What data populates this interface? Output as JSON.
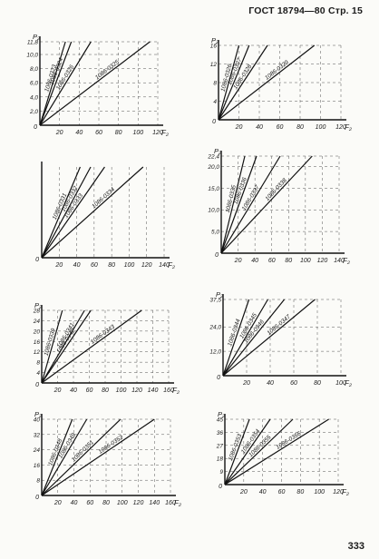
{
  "header": {
    "text": "ГОСТ 18794—80  Стр. 15"
  },
  "page_number": "333",
  "chart_data": [
    {
      "type": "line",
      "ylabel": "P₂",
      "xlabel": "F₂",
      "xlim": [
        0,
        120
      ],
      "ylim": [
        0,
        11.8
      ],
      "x_ticks": [
        "20",
        "40",
        "60",
        "80",
        "100",
        "120"
      ],
      "y_ticks": [
        "2,0",
        "4,0",
        "6,0",
        "8,0",
        "10,0",
        "11,8"
      ],
      "grid": true,
      "series": [
        {
          "name": "1086-0323",
          "x": [
            0,
            26
          ],
          "y": [
            0,
            11.8
          ]
        },
        {
          "name": "1086-0324",
          "x": [
            0,
            32
          ],
          "y": [
            0,
            11.8
          ]
        },
        {
          "name": "1086-0326",
          "x": [
            0,
            52
          ],
          "y": [
            0,
            11.8
          ]
        },
        {
          "name": "1086-0325",
          "x": [
            0,
            112
          ],
          "y": [
            0,
            11.8
          ]
        }
      ]
    },
    {
      "type": "line",
      "ylabel": "P₂",
      "xlabel": "F₂",
      "xlim": [
        0,
        120
      ],
      "ylim": [
        0,
        16
      ],
      "x_ticks": [
        "20",
        "40",
        "60",
        "80",
        "100",
        "120"
      ],
      "y_ticks": [
        "4",
        "8",
        "12",
        "16"
      ],
      "grid": true,
      "series": [
        {
          "name": "1086-0326",
          "x": [
            0,
            20
          ],
          "y": [
            0,
            16
          ]
        },
        {
          "name": "1086-0327",
          "x": [
            0,
            30
          ],
          "y": [
            0,
            16
          ]
        },
        {
          "name": "1086-0328",
          "x": [
            0,
            48
          ],
          "y": [
            0,
            16
          ]
        },
        {
          "name": "1086-0329",
          "x": [
            0,
            94
          ],
          "y": [
            0,
            16
          ]
        }
      ]
    },
    {
      "type": "line",
      "ylabel": "",
      "xlabel": "F₂",
      "xlim": [
        0,
        140
      ],
      "ylim": [
        0,
        1
      ],
      "x_ticks": [
        "20",
        "40",
        "60",
        "80",
        "100",
        "120",
        "140"
      ],
      "y_ticks": [],
      "grid": true,
      "series": [
        {
          "name": "1086-0331",
          "x": [
            0,
            44
          ],
          "y": [
            0,
            1
          ]
        },
        {
          "name": "1086-0332",
          "x": [
            0,
            56
          ],
          "y": [
            0,
            1
          ]
        },
        {
          "name": "1086-0333",
          "x": [
            0,
            72
          ],
          "y": [
            0,
            1
          ]
        },
        {
          "name": "1086-0334",
          "x": [
            0,
            116
          ],
          "y": [
            0,
            1
          ]
        }
      ]
    },
    {
      "type": "line",
      "ylabel": "P₂",
      "xlabel": "F₂",
      "xlim": [
        0,
        140
      ],
      "ylim": [
        0,
        22.4
      ],
      "x_ticks": [
        "20",
        "40",
        "60",
        "80",
        "100",
        "120",
        "140"
      ],
      "y_ticks": [
        "5,0",
        "10,0",
        "15,0",
        "20,0",
        "22,4"
      ],
      "grid": true,
      "series": [
        {
          "name": "1086-0335",
          "x": [
            0,
            28
          ],
          "y": [
            0,
            22.4
          ]
        },
        {
          "name": "1086-0336",
          "x": [
            0,
            42
          ],
          "y": [
            0,
            22.4
          ]
        },
        {
          "name": "1086-0337",
          "x": [
            0,
            70
          ],
          "y": [
            0,
            22.4
          ]
        },
        {
          "name": "1086-0338",
          "x": [
            0,
            108
          ],
          "y": [
            0,
            22.4
          ]
        }
      ]
    },
    {
      "type": "line",
      "ylabel": "P₂",
      "xlabel": "F₂",
      "xlim": [
        0,
        160
      ],
      "ylim": [
        0,
        28
      ],
      "x_ticks": [
        "20",
        "40",
        "60",
        "80",
        "100",
        "120",
        "140",
        "160"
      ],
      "y_ticks": [
        "4",
        "8",
        "12",
        "16",
        "20",
        "24",
        "28"
      ],
      "grid": true,
      "series": [
        {
          "name": "1086-0339",
          "x": [
            0,
            26
          ],
          "y": [
            0,
            28
          ]
        },
        {
          "name": "1086-0341",
          "x": [
            0,
            54
          ],
          "y": [
            0,
            28
          ]
        },
        {
          "name": "1086-0342",
          "x": [
            0,
            62
          ],
          "y": [
            0,
            28
          ]
        },
        {
          "name": "1086-0343",
          "x": [
            0,
            126
          ],
          "y": [
            0,
            28
          ]
        }
      ]
    },
    {
      "type": "line",
      "ylabel": "P₂",
      "xlabel": "F₂",
      "xlim": [
        0,
        100
      ],
      "ylim": [
        0,
        37.5
      ],
      "x_ticks": [
        "20",
        "40",
        "60",
        "80",
        "100"
      ],
      "y_ticks": [
        "12,0",
        "24,0",
        "37,5"
      ],
      "grid": true,
      "series": [
        {
          "name": "1086-0344",
          "x": [
            0,
            22
          ],
          "y": [
            0,
            37.5
          ]
        },
        {
          "name": "1086-0345",
          "x": [
            0,
            38
          ],
          "y": [
            0,
            37.5
          ]
        },
        {
          "name": "1086-0346",
          "x": [
            0,
            52
          ],
          "y": [
            0,
            37.5
          ]
        },
        {
          "name": "1086-0347",
          "x": [
            0,
            78
          ],
          "y": [
            0,
            37.5
          ]
        }
      ]
    },
    {
      "type": "line",
      "ylabel": "P₂",
      "xlabel": "F₂",
      "xlim": [
        0,
        160
      ],
      "ylim": [
        0,
        40
      ],
      "x_ticks": [
        "20",
        "40",
        "60",
        "80",
        "100",
        "120",
        "140",
        "160"
      ],
      "y_ticks": [
        "8",
        "16",
        "24",
        "32",
        "40"
      ],
      "grid": true,
      "series": [
        {
          "name": "1086-0348",
          "x": [
            0,
            38
          ],
          "y": [
            0,
            40
          ]
        },
        {
          "name": "1086-0349",
          "x": [
            0,
            56
          ],
          "y": [
            0,
            40
          ]
        },
        {
          "name": "1086-0351",
          "x": [
            0,
            98
          ],
          "y": [
            0,
            40
          ]
        },
        {
          "name": "1086-0352",
          "x": [
            0,
            140
          ],
          "y": [
            0,
            40
          ]
        }
      ]
    },
    {
      "type": "line",
      "ylabel": "P₂",
      "xlabel": "F₂",
      "xlim": [
        0,
        120
      ],
      "ylim": [
        0,
        45
      ],
      "x_ticks": [
        "20",
        "40",
        "60",
        "80",
        "100",
        "120"
      ],
      "y_ticks": [
        "9",
        "18",
        "27",
        "36",
        "45"
      ],
      "grid": true,
      "series": [
        {
          "name": "1086-0353",
          "x": [
            0,
            26
          ],
          "y": [
            0,
            45
          ]
        },
        {
          "name": "1086-0354",
          "x": [
            0,
            48
          ],
          "y": [
            0,
            45
          ]
        },
        {
          "name": "1086-0355",
          "x": [
            0,
            72
          ],
          "y": [
            0,
            45
          ]
        },
        {
          "name": "1086-0356",
          "x": [
            0,
            110
          ],
          "y": [
            0,
            45
          ]
        }
      ]
    }
  ]
}
